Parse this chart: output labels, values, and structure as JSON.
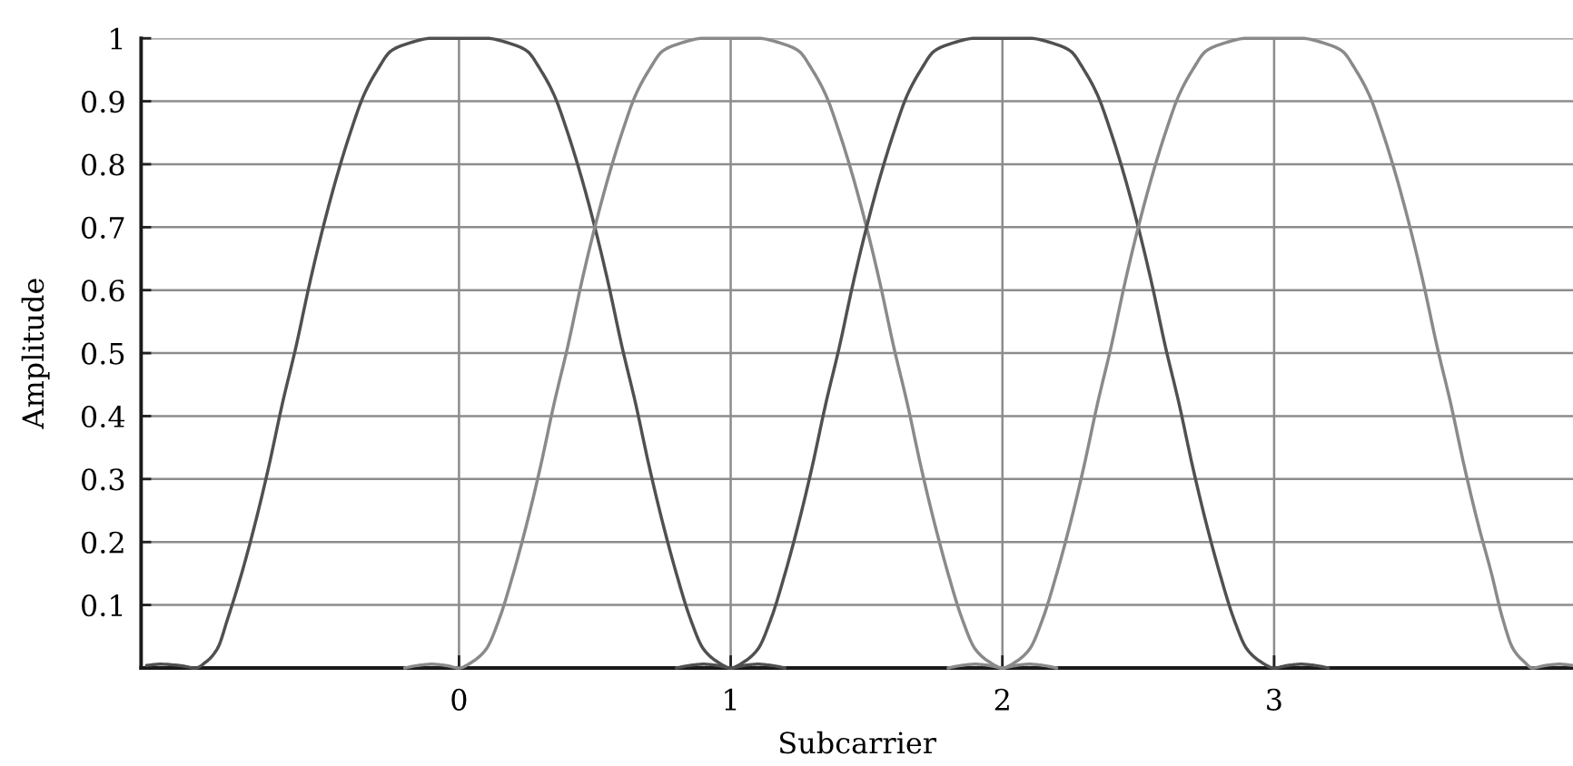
{
  "chart_data": {
    "type": "line",
    "xlabel": "Subcarrier",
    "ylabel": "Amplitude",
    "xlim": [
      -1.17,
      4.1
    ],
    "ylim": [
      0,
      1
    ],
    "xticks": [
      0,
      1,
      2,
      3
    ],
    "yticks": [
      0.1,
      0.2,
      0.3,
      0.4,
      0.5,
      0.6,
      0.7,
      0.8,
      0.9,
      1
    ],
    "grid": true,
    "series": [
      {
        "color": "#505050",
        "x": [
          -1.15,
          -1.1,
          -1.03,
          -0.97,
          -0.93,
          -0.89,
          -0.85,
          -0.8,
          -0.75,
          -0.7,
          -0.65,
          -0.6,
          -0.55,
          -0.5,
          -0.45,
          -0.4,
          -0.35,
          -0.3,
          -0.25,
          -0.2,
          -0.1,
          0,
          0.1,
          0.2,
          0.25,
          0.3,
          0.35,
          0.4,
          0.45,
          0.5,
          0.55,
          0.6,
          0.65,
          0.7,
          0.75,
          0.8,
          0.85,
          0.9,
          0.95,
          1,
          1.05,
          1.1,
          1.15,
          1.2
        ],
        "values": [
          0.004,
          0.006,
          0.004,
          0,
          0.01,
          0.03,
          0.08,
          0.15,
          0.23,
          0.32,
          0.42,
          0.51,
          0.61,
          0.7,
          0.78,
          0.85,
          0.91,
          0.95,
          0.98,
          0.99,
          1,
          1,
          1,
          0.99,
          0.98,
          0.95,
          0.91,
          0.85,
          0.78,
          0.7,
          0.61,
          0.51,
          0.42,
          0.32,
          0.23,
          0.15,
          0.08,
          0.03,
          0.01,
          0,
          0.004,
          0.006,
          0.004,
          0
        ]
      },
      {
        "color": "#8a8a8a",
        "x": [
          -0.2,
          -0.15,
          -0.1,
          -0.05,
          0,
          0.05,
          0.1,
          0.15,
          0.2,
          0.25,
          0.3,
          0.35,
          0.4,
          0.45,
          0.5,
          0.55,
          0.6,
          0.65,
          0.7,
          0.75,
          0.8,
          0.9,
          1,
          1.1,
          1.2,
          1.25,
          1.3,
          1.35,
          1.4,
          1.45,
          1.5,
          1.55,
          1.6,
          1.65,
          1.7,
          1.75,
          1.8,
          1.85,
          1.9,
          1.95,
          2,
          2.05,
          2.1,
          2.15,
          2.2
        ],
        "values": [
          0,
          0.004,
          0.006,
          0.004,
          0,
          0.01,
          0.03,
          0.08,
          0.15,
          0.23,
          0.32,
          0.42,
          0.51,
          0.61,
          0.7,
          0.78,
          0.85,
          0.91,
          0.95,
          0.98,
          0.99,
          1,
          1,
          1,
          0.99,
          0.98,
          0.95,
          0.91,
          0.85,
          0.78,
          0.7,
          0.61,
          0.51,
          0.42,
          0.32,
          0.23,
          0.15,
          0.08,
          0.03,
          0.01,
          0,
          0.004,
          0.006,
          0.004,
          0
        ]
      },
      {
        "color": "#505050",
        "x": [
          0.8,
          0.85,
          0.9,
          0.95,
          1,
          1.05,
          1.1,
          1.15,
          1.2,
          1.25,
          1.3,
          1.35,
          1.4,
          1.45,
          1.5,
          1.55,
          1.6,
          1.65,
          1.7,
          1.75,
          1.8,
          1.9,
          2,
          2.1,
          2.2,
          2.25,
          2.3,
          2.35,
          2.4,
          2.45,
          2.5,
          2.55,
          2.6,
          2.65,
          2.7,
          2.75,
          2.8,
          2.85,
          2.9,
          2.95,
          3,
          3.05,
          3.1,
          3.15,
          3.2
        ],
        "values": [
          0,
          0.004,
          0.006,
          0.004,
          0,
          0.01,
          0.03,
          0.08,
          0.15,
          0.23,
          0.32,
          0.42,
          0.51,
          0.61,
          0.7,
          0.78,
          0.85,
          0.91,
          0.95,
          0.98,
          0.99,
          1,
          1,
          1,
          0.99,
          0.98,
          0.95,
          0.91,
          0.85,
          0.78,
          0.7,
          0.61,
          0.51,
          0.42,
          0.32,
          0.23,
          0.15,
          0.08,
          0.03,
          0.01,
          0,
          0.004,
          0.006,
          0.004,
          0
        ]
      },
      {
        "color": "#8a8a8a",
        "x": [
          1.8,
          1.85,
          1.9,
          1.95,
          2,
          2.05,
          2.1,
          2.15,
          2.2,
          2.25,
          2.3,
          2.35,
          2.4,
          2.45,
          2.5,
          2.55,
          2.6,
          2.65,
          2.7,
          2.75,
          2.8,
          2.9,
          3,
          3.1,
          3.2,
          3.25,
          3.3,
          3.35,
          3.4,
          3.45,
          3.5,
          3.55,
          3.6,
          3.65,
          3.7,
          3.75,
          3.8,
          3.84,
          3.88,
          3.92,
          3.95,
          4,
          4.05,
          4.1
        ],
        "values": [
          0,
          0.004,
          0.006,
          0.004,
          0,
          0.01,
          0.03,
          0.08,
          0.15,
          0.23,
          0.32,
          0.42,
          0.51,
          0.61,
          0.7,
          0.78,
          0.85,
          0.91,
          0.95,
          0.98,
          0.99,
          1,
          1,
          1,
          0.99,
          0.98,
          0.95,
          0.91,
          0.85,
          0.78,
          0.7,
          0.61,
          0.51,
          0.42,
          0.32,
          0.23,
          0.15,
          0.08,
          0.03,
          0.01,
          0,
          0.004,
          0.006,
          0.004
        ]
      }
    ]
  }
}
